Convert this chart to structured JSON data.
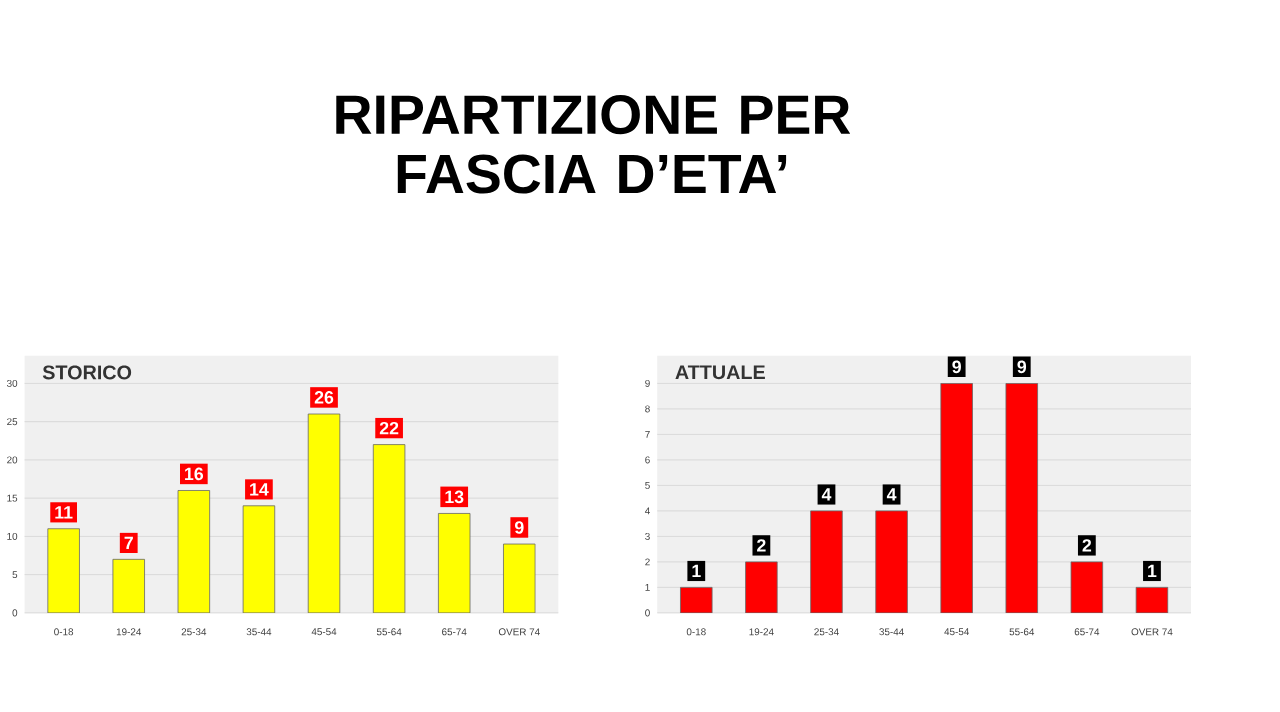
{
  "chart_data": [
    {
      "type": "bar",
      "title": "STORICO",
      "annotations": [
        "RIPARTIZIONE PER FASCIA D’ETA’"
      ],
      "categories": [
        "0-18",
        "19-24",
        "25-34",
        "35-44",
        "45-54",
        "55-64",
        "65-74",
        "OVER 74"
      ],
      "values": [
        11,
        7,
        16,
        14,
        26,
        22,
        13,
        9
      ],
      "color": "#ffff00",
      "ylim": [
        0,
        30
      ],
      "yticks": [
        0,
        5,
        10,
        15,
        20,
        25,
        30
      ],
      "grid": "y",
      "data_labels": true
    },
    {
      "type": "bar",
      "title": "ATTUALE",
      "categories": [
        "0-18",
        "19-24",
        "25-34",
        "35-44",
        "45-54",
        "55-64",
        "65-74",
        "OVER 74"
      ],
      "values": [
        1,
        2,
        4,
        4,
        9,
        9,
        2,
        1
      ],
      "color": "#ff0000",
      "ylim": [
        0,
        9
      ],
      "yticks": [
        0,
        1,
        2,
        3,
        4,
        5,
        6,
        7,
        8,
        9
      ],
      "grid": "y",
      "data_labels": true
    }
  ]
}
